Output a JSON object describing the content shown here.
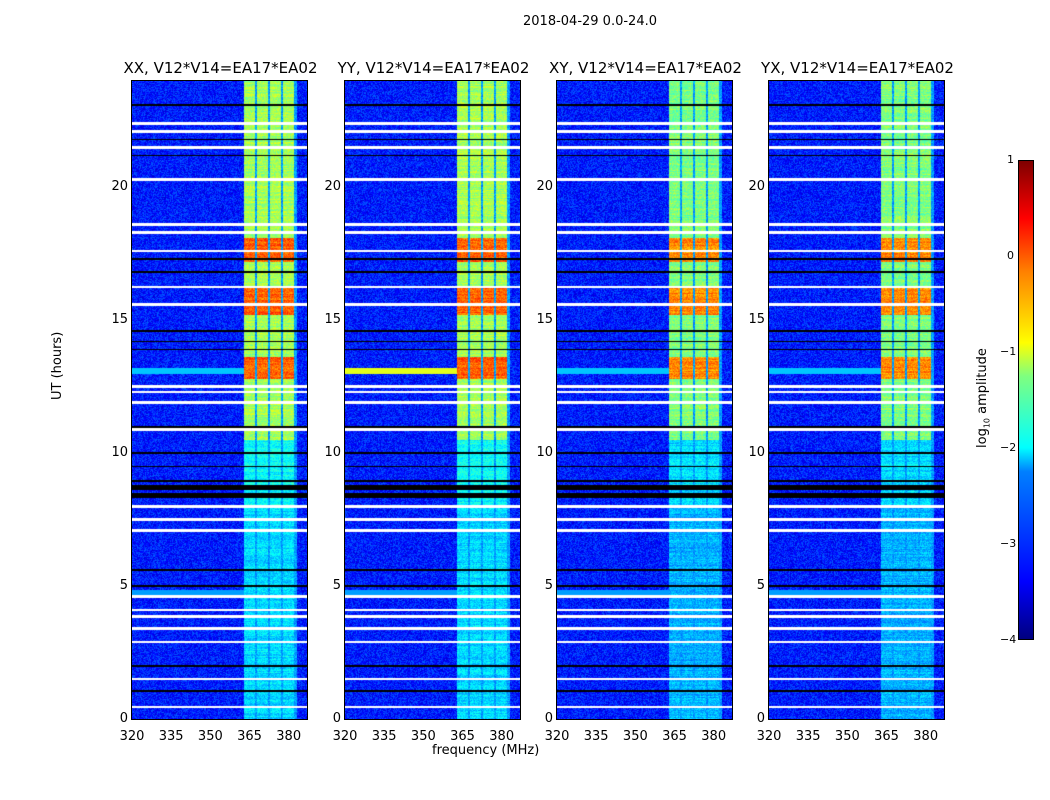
{
  "chart_data": {
    "type": "heatmap",
    "title": "2018-04-29 0.0-24.0",
    "xlabel": "frequency (MHz)",
    "ylabel": "UT (hours)",
    "xlim": [
      320,
      387
    ],
    "ylim": [
      0,
      24
    ],
    "xticks": [
      "320",
      "335",
      "350",
      "365",
      "380"
    ],
    "yticks": [
      "0",
      "5",
      "10",
      "15",
      "20"
    ],
    "panels": [
      {
        "title": "XX, V12*V14=EA17*EA02"
      },
      {
        "title": "YY, V12*V14=EA17*EA02"
      },
      {
        "title": "XY, V12*V14=EA17*EA02"
      },
      {
        "title": "YX, V12*V14=EA17*EA02"
      }
    ],
    "colorbar": {
      "label_prefix": "log",
      "label_sub": "10",
      "label_suffix": " amplitude",
      "clim": [
        -4,
        1
      ],
      "ticks": [
        "1",
        "0",
        "−1",
        "−2",
        "−3",
        "−4"
      ],
      "colormap": "jet"
    },
    "rfi_subbands_mhz": [
      [
        363,
        367
      ],
      [
        368,
        372
      ],
      [
        373,
        377
      ],
      [
        378,
        382
      ]
    ],
    "flagged_white_hours": [
      0.45,
      1.5,
      2.9,
      3.4,
      3.85,
      4.1,
      4.6,
      7.1,
      7.5,
      8.0,
      10.9,
      11.9,
      12.3,
      12.5,
      15.6,
      16.25,
      17.6,
      18.3,
      18.6,
      20.3,
      21.5,
      22.1,
      22.4
    ],
    "flagged_black_hours": [
      1.05,
      2.0,
      5.0,
      5.6,
      9.5,
      10.0,
      11.0,
      13.9,
      14.2,
      14.6,
      16.8,
      17.3,
      21.2,
      21.8,
      23.1
    ],
    "flagged_black_ranges": [
      [
        8.2,
        9.0
      ]
    ],
    "bursts_hours": [
      [
        12.8,
        13.6
      ],
      [
        17.2,
        18.1
      ],
      [
        15.2,
        16.2
      ]
    ]
  }
}
